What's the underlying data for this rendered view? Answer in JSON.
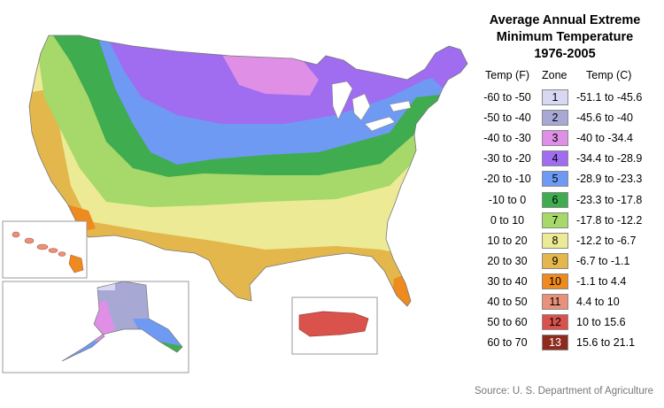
{
  "title_lines": [
    "Average Annual Extreme",
    "Minimum Temperature",
    "1976-2005"
  ],
  "legend": {
    "headers": {
      "temp_f": "Temp (F)",
      "zone": "Zone",
      "temp_c": "Temp (C)"
    },
    "rows": [
      {
        "f": "-60 to -50",
        "zone": "1",
        "c": "-51.1 to -45.6",
        "color": "#d8d8f2"
      },
      {
        "f": "-50 to -40",
        "zone": "2",
        "c": "-45.6 to -40",
        "color": "#a8a8d4"
      },
      {
        "f": "-40 to -30",
        "zone": "3",
        "c": "-40 to -34.4",
        "color": "#df8fe6"
      },
      {
        "f": "-30 to -20",
        "zone": "4",
        "c": "-34.4 to -28.9",
        "color": "#a06cf0"
      },
      {
        "f": "-20 to -10",
        "zone": "5",
        "c": "-28.9 to -23.3",
        "color": "#6e9af4"
      },
      {
        "f": "-10 to 0",
        "zone": "6",
        "c": "-23.3 to -17.8",
        "color": "#3fac4f"
      },
      {
        "f": "0 to 10",
        "zone": "7",
        "c": "-17.8 to -12.2",
        "color": "#a6d86a"
      },
      {
        "f": "10 to 20",
        "zone": "8",
        "c": "-12.2 to -6.7",
        "color": "#ecea94"
      },
      {
        "f": "20 to 30",
        "zone": "9",
        "c": "-6.7 to -1.1",
        "color": "#e3b74b"
      },
      {
        "f": "30 to 40",
        "zone": "10",
        "c": "-1.1 to 4.4",
        "color": "#ee8a1e"
      },
      {
        "f": "40 to 50",
        "zone": "11",
        "c": "4.4 to 10",
        "color": "#e9917a"
      },
      {
        "f": "50 to 60",
        "zone": "12",
        "c": "10 to 15.6",
        "color": "#d9534c"
      },
      {
        "f": "60 to 70",
        "zone": "13",
        "c": "15.6 to 21.1",
        "color": "#8f2b1e"
      }
    ]
  },
  "source": "Source: U. S. Department of Agriculture"
}
